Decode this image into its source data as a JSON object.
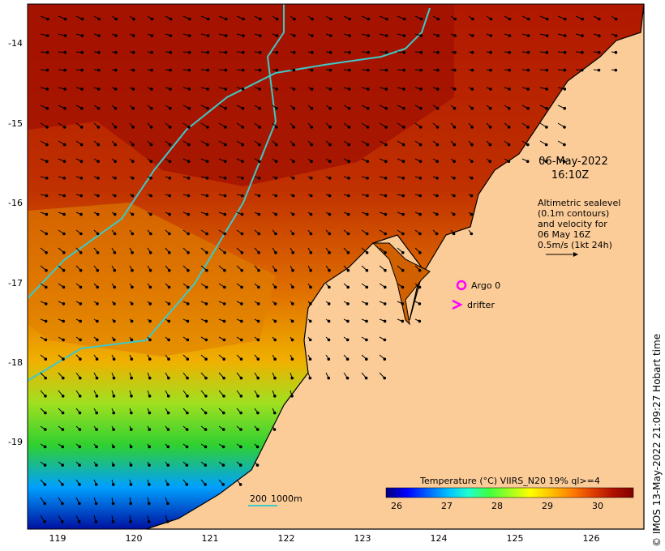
{
  "x_ticks": [
    "119",
    "120",
    "121",
    "122",
    "123",
    "124",
    "125",
    "126"
  ],
  "y_ticks": [
    "-14",
    "-15",
    "-16",
    "-17",
    "-18",
    "-19"
  ],
  "timestamp": {
    "date": "06-May-2022",
    "time": "16:10Z"
  },
  "sealevel_note": [
    "Altimetric sealevel",
    "(0.1m contours)",
    "and velocity for",
    "06 May 16Z",
    "0.5m/s (1kt 24h)"
  ],
  "legend": {
    "argo": "Argo 0",
    "drifter": "drifter"
  },
  "bathymetry_scale": {
    "a": "200",
    "b": "1000m"
  },
  "colorbar": {
    "title": "Temperature (°C) VIIRS_N20 19% ql>=4",
    "ticks": [
      "26",
      "27",
      "28",
      "29",
      "30"
    ],
    "colors": [
      "#00007a",
      "#0000ff",
      "#0060ff",
      "#00c0ff",
      "#20ffd0",
      "#40ff40",
      "#a0ff20",
      "#ffff00",
      "#ffc000",
      "#ff8000",
      "#e04000",
      "#b01000",
      "#800000"
    ]
  },
  "credit": "© IMOS 13-May-2022 21:09:27 Hobart time",
  "colors": {
    "land": "#fccc98",
    "coastline": "#000000",
    "isobath": "#40c8c8",
    "marker": "#ff00ff"
  }
}
